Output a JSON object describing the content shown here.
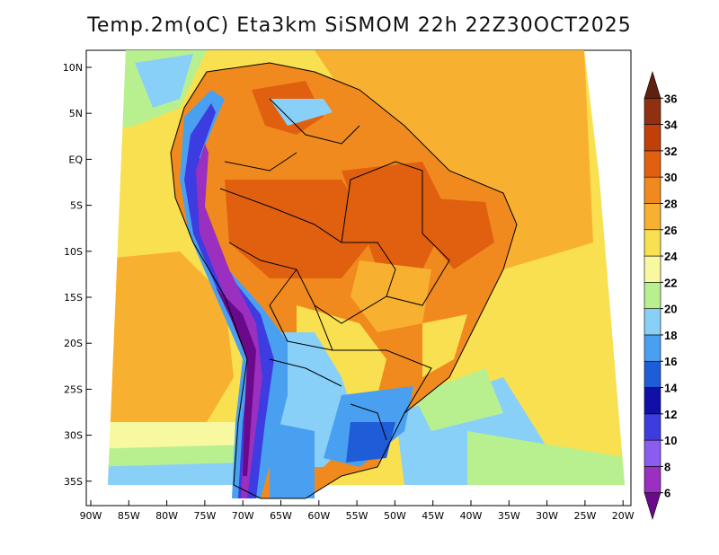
{
  "title": "Temp.2m(oC) Eta3km SiSMOM 22h 22Z30OCT2025",
  "lat_labels": [
    "10N",
    "5N",
    "EQ",
    "5S",
    "10S",
    "15S",
    "20S",
    "25S",
    "30S",
    "35S"
  ],
  "lon_labels": [
    "90W",
    "85W",
    "80W",
    "75W",
    "70W",
    "65W",
    "60W",
    "55W",
    "50W",
    "45W",
    "40W",
    "35W",
    "30W",
    "25W",
    "20W"
  ],
  "colorbar": {
    "levels": [
      "6",
      "8",
      "10",
      "12",
      "14",
      "16",
      "18",
      "20",
      "22",
      "24",
      "26",
      "28",
      "30",
      "32",
      "34",
      "36"
    ],
    "colors": [
      "#6a0a8a",
      "#9a2fc0",
      "#8a5cf0",
      "#3c3ce0",
      "#1010a8",
      "#1e5cd8",
      "#4aa0f0",
      "#88d0f8",
      "#b8f090",
      "#f8f8a0",
      "#f8e050",
      "#f8b030",
      "#f08a1e",
      "#e06010",
      "#c04008",
      "#903010",
      "#602010"
    ]
  }
}
